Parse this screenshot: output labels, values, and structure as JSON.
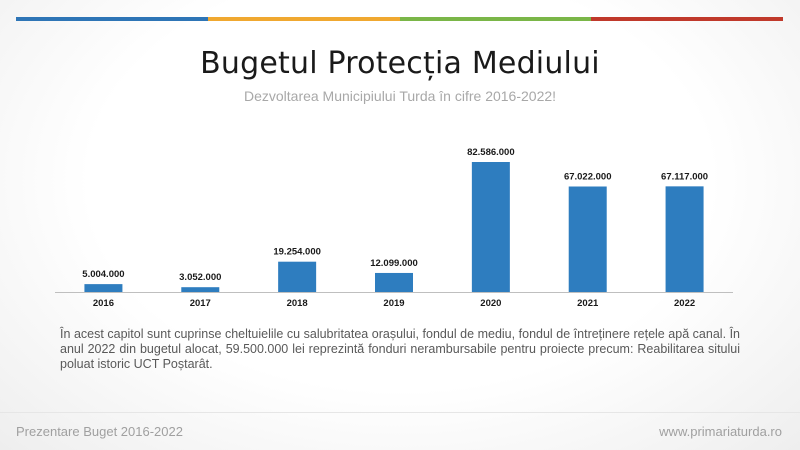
{
  "header": {
    "title": "Bugetul Protecția Mediului",
    "subtitle": "Dezvoltarea Municipiului Turda în cifre 2016-2022!",
    "stripe_colors": [
      "#2e75b6",
      "#f0a830",
      "#7ab648",
      "#c0392b"
    ]
  },
  "chart_data": {
    "type": "bar",
    "title": "",
    "xlabel": "",
    "ylabel": "",
    "categories": [
      "2016",
      "2017",
      "2018",
      "2019",
      "2020",
      "2021",
      "2022"
    ],
    "values": [
      5004000,
      3052000,
      19254000,
      12099000,
      82586000,
      67022000,
      67117000
    ],
    "value_labels": [
      "5.004.000",
      "3.052.000",
      "19.254.000",
      "12.099.000",
      "82.586.000",
      "67.022.000",
      "67.117.000"
    ],
    "ylim": [
      0,
      82586000
    ],
    "bar_color": "#2e7dbf",
    "grid": false,
    "legend": "none"
  },
  "description": "În acest capitol sunt cuprinse cheltuielile cu salubritatea orașului, fondul de mediu, fondul de întreținere rețele apă canal. În anul 2022 din bugetul alocat, 59.500.000 lei reprezintă fonduri nerambursabile pentru proiecte precum: Reabilitarea sitului poluat istoric UCT Poștarât.",
  "footer": {
    "left": "Prezentare Buget 2016-2022",
    "right": "www.primariaturda.ro"
  }
}
